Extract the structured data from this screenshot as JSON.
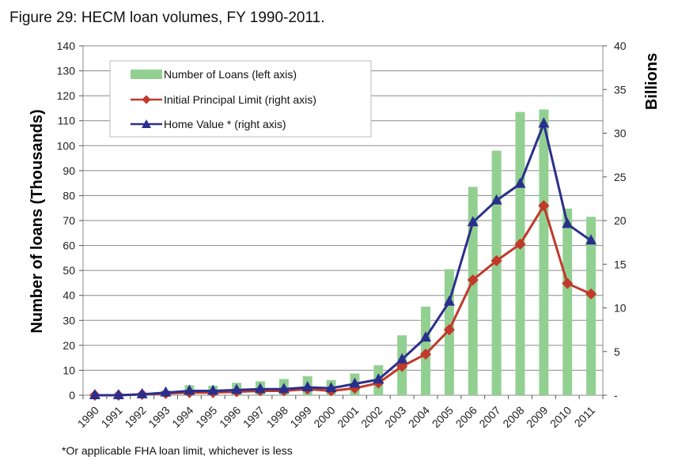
{
  "figure": {
    "title": "Figure 29: HECM loan volumes, FY 1990-2011.",
    "footnote": "*Or applicable FHA loan limit, whichever is less"
  },
  "chart_data": {
    "type": "bar+line",
    "categories": [
      "1990",
      "1991",
      "1992",
      "1993",
      "1994",
      "1995",
      "1996",
      "1997",
      "1998",
      "1999",
      "2000",
      "2001",
      "2002",
      "2003",
      "2004",
      "2005",
      "2006",
      "2007",
      "2008",
      "2009",
      "2010",
      "2011"
    ],
    "series": [
      {
        "name": "Number of Loans (left axis)",
        "type": "bar",
        "axis": "left",
        "color": "#92d091",
        "values": [
          0.2,
          0.4,
          1.0,
          1.9,
          4.0,
          3.8,
          5.0,
          5.6,
          6.5,
          7.6,
          6.1,
          8.7,
          12.0,
          24.0,
          35.5,
          50.5,
          83.5,
          98.0,
          113.5,
          114.5,
          74.8,
          71.5
        ]
      },
      {
        "name": "Initial Principal Limit (right axis)",
        "type": "line",
        "axis": "right",
        "color": "#c0392b",
        "marker": "diamond",
        "values": [
          0.0,
          0.0,
          0.1,
          0.2,
          0.3,
          0.3,
          0.4,
          0.5,
          0.5,
          0.7,
          0.5,
          0.8,
          1.4,
          3.3,
          4.7,
          7.5,
          13.2,
          15.4,
          17.3,
          21.7,
          12.8,
          11.6
        ]
      },
      {
        "name": "Home Value * (right axis)",
        "type": "line",
        "axis": "right",
        "color": "#2b2f8c",
        "marker": "triangle",
        "values": [
          0.0,
          0.0,
          0.1,
          0.3,
          0.5,
          0.5,
          0.6,
          0.7,
          0.7,
          0.9,
          0.8,
          1.3,
          1.8,
          4.1,
          6.6,
          10.7,
          19.8,
          22.3,
          24.2,
          31.1,
          19.6,
          17.7
        ]
      }
    ],
    "ylabel": "Number of loans (Thousands)",
    "y2label": "Billions",
    "ylim": [
      0,
      140
    ],
    "y2lim": [
      0,
      40
    ],
    "yticks": [
      "0",
      "10",
      "20",
      "30",
      "40",
      "50",
      "60",
      "70",
      "80",
      "90",
      "100",
      "110",
      "120",
      "130",
      "140"
    ],
    "y2ticks": [
      "-",
      "5",
      "10",
      "15",
      "20",
      "25",
      "30",
      "35",
      "40"
    ],
    "grid": true,
    "legend_position": "top-left"
  }
}
